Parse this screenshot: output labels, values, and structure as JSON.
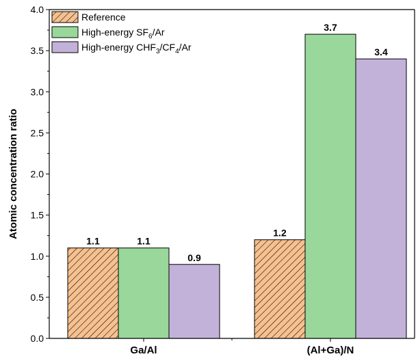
{
  "chart_data": {
    "type": "bar",
    "categories": [
      "Ga/Al",
      "(Al+Ga)/N"
    ],
    "series": [
      {
        "name": "Reference",
        "legend_parts": [
          {
            "t": "Reference",
            "sub": false
          }
        ],
        "values": [
          1.1,
          1.2
        ],
        "value_labels": [
          "1.1",
          "1.2"
        ],
        "color": "#f6c08f",
        "hatch": true
      },
      {
        "name": "High-energy SF6/Ar",
        "legend_parts": [
          {
            "t": "High-energy SF",
            "sub": false
          },
          {
            "t": "6",
            "sub": true
          },
          {
            "t": "/Ar",
            "sub": false
          }
        ],
        "values": [
          1.1,
          3.7
        ],
        "value_labels": [
          "1.1",
          "3.7"
        ],
        "color": "#99d89a",
        "hatch": false
      },
      {
        "name": "High-energy CHF3/CF4/Ar",
        "legend_parts": [
          {
            "t": "High-energy CHF",
            "sub": false
          },
          {
            "t": "3",
            "sub": true
          },
          {
            "t": "/CF",
            "sub": false
          },
          {
            "t": "4",
            "sub": true
          },
          {
            "t": "/Ar",
            "sub": false
          }
        ],
        "values": [
          0.9,
          3.4
        ],
        "value_labels": [
          "0.9",
          "3.4"
        ],
        "color": "#c2b2d9",
        "hatch": false
      }
    ],
    "ylabel": "Atomic concentration ratio",
    "xlabel": "",
    "ylim": [
      0,
      4.0
    ],
    "yticks": [
      "0.0",
      "0.5",
      "1.0",
      "1.5",
      "2.0",
      "2.5",
      "3.0",
      "3.5",
      "4.0"
    ],
    "grid": false,
    "legend_position": "top-left"
  }
}
